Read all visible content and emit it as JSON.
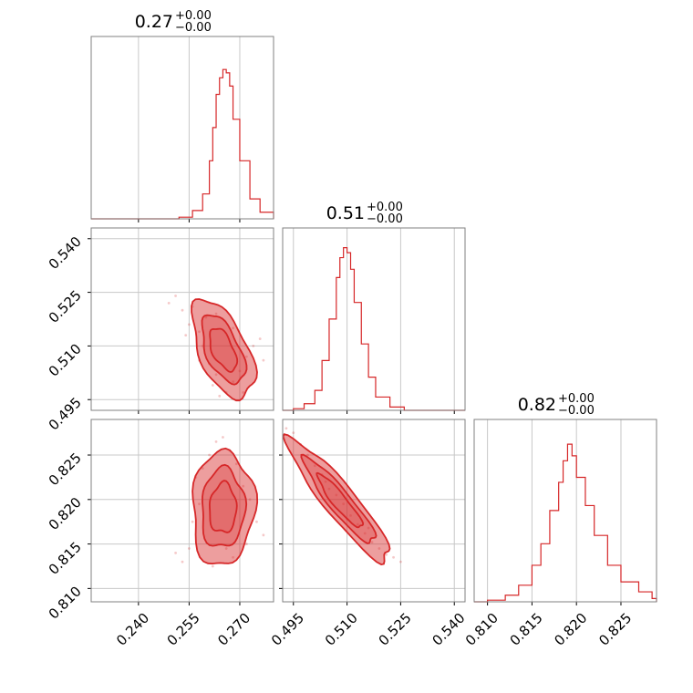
{
  "colors": {
    "main": "#d62728",
    "grid": "#c8c8c8",
    "frame": "#808080"
  },
  "chart_data": {
    "type": "corner",
    "parameters": [
      {
        "key": "p1",
        "title_value": "0.27",
        "title_upper": "+0.00",
        "title_lower": "−0.00",
        "range": [
          0.226,
          0.28
        ],
        "ticks": [
          "0.240",
          "0.255",
          "0.270"
        ],
        "hist_ymax": 1.0,
        "hist_x": [
          0.248,
          0.252,
          0.256,
          0.259,
          0.261,
          0.262,
          0.263,
          0.264,
          0.265,
          0.266,
          0.267,
          0.268,
          0.27,
          0.273,
          0.276,
          0.28
        ],
        "hist_y": [
          0.0,
          0.01,
          0.05,
          0.15,
          0.35,
          0.55,
          0.75,
          0.85,
          0.9,
          0.88,
          0.8,
          0.6,
          0.35,
          0.12,
          0.04,
          0.01
        ]
      },
      {
        "key": "p2",
        "title_value": "0.51",
        "title_upper": "+0.00",
        "title_lower": "−0.00",
        "range": [
          0.492,
          0.543
        ],
        "ticks": [
          "0.495",
          "0.510",
          "0.525",
          "0.540"
        ],
        "y_ticks": [
          "0.495",
          "0.510",
          "0.525",
          "0.540"
        ],
        "hist_ymax": 1.0,
        "hist_x": [
          0.495,
          0.498,
          0.501,
          0.503,
          0.505,
          0.507,
          0.508,
          0.509,
          0.51,
          0.511,
          0.512,
          0.514,
          0.516,
          0.518,
          0.522,
          0.526
        ],
        "hist_y": [
          0.01,
          0.04,
          0.12,
          0.3,
          0.55,
          0.8,
          0.92,
          0.98,
          0.95,
          0.85,
          0.65,
          0.4,
          0.2,
          0.08,
          0.02,
          0.0
        ]
      },
      {
        "key": "p3",
        "title_value": "0.82",
        "title_upper": "+0.00",
        "title_lower": "−0.00",
        "range": [
          0.8085,
          0.829
        ],
        "ticks": [
          "0.810",
          "0.815",
          "0.820",
          "0.825"
        ],
        "y_ticks": [
          "0.810",
          "0.815",
          "0.820",
          "0.825"
        ],
        "hist_ymax": 1.0,
        "hist_x": [
          0.81,
          0.812,
          0.8135,
          0.815,
          0.816,
          0.817,
          0.818,
          0.8185,
          0.819,
          0.8195,
          0.82,
          0.821,
          0.822,
          0.8235,
          0.825,
          0.827,
          0.8285
        ],
        "hist_y": [
          0.01,
          0.04,
          0.1,
          0.22,
          0.35,
          0.55,
          0.72,
          0.85,
          0.95,
          0.88,
          0.75,
          0.58,
          0.4,
          0.22,
          0.12,
          0.06,
          0.02
        ]
      }
    ],
    "pairs": [
      {
        "x": "p1",
        "y": "p2",
        "center": [
          0.265,
          0.509
        ],
        "sigma": [
          0.004,
          0.006
        ],
        "rho": -0.55,
        "contour_levels": [
          1.0,
          1.6,
          2.3
        ],
        "scatter_points": [
          [
            0.249,
            0.522
          ],
          [
            0.251,
            0.524
          ],
          [
            0.253,
            0.52
          ],
          [
            0.255,
            0.516
          ],
          [
            0.256,
            0.521
          ],
          [
            0.258,
            0.514
          ],
          [
            0.259,
            0.51
          ],
          [
            0.26,
            0.518
          ],
          [
            0.261,
            0.505
          ],
          [
            0.262,
            0.499
          ],
          [
            0.263,
            0.502
          ],
          [
            0.264,
            0.496
          ],
          [
            0.266,
            0.497
          ],
          [
            0.268,
            0.5
          ],
          [
            0.27,
            0.503
          ],
          [
            0.272,
            0.507
          ],
          [
            0.274,
            0.51
          ],
          [
            0.276,
            0.512
          ],
          [
            0.277,
            0.506
          ],
          [
            0.268,
            0.515
          ],
          [
            0.263,
            0.519
          ],
          [
            0.258,
            0.506
          ],
          [
            0.271,
            0.497
          ],
          [
            0.254,
            0.513
          ]
        ]
      },
      {
        "x": "p1",
        "y": "p3",
        "center": [
          0.265,
          0.819
        ],
        "sigma": [
          0.004,
          0.0028
        ],
        "rho": 0.05,
        "contour_levels": [
          1.0,
          1.6,
          2.3
        ],
        "scatter_points": [
          [
            0.251,
            0.814
          ],
          [
            0.253,
            0.813
          ],
          [
            0.255,
            0.8145
          ],
          [
            0.257,
            0.8225
          ],
          [
            0.259,
            0.8235
          ],
          [
            0.261,
            0.825
          ],
          [
            0.263,
            0.8265
          ],
          [
            0.265,
            0.827
          ],
          [
            0.267,
            0.8255
          ],
          [
            0.269,
            0.824
          ],
          [
            0.271,
            0.8215
          ],
          [
            0.273,
            0.82
          ],
          [
            0.275,
            0.8175
          ],
          [
            0.277,
            0.816
          ],
          [
            0.272,
            0.815
          ],
          [
            0.268,
            0.8135
          ],
          [
            0.262,
            0.8125
          ],
          [
            0.258,
            0.8195
          ],
          [
            0.256,
            0.8175
          ],
          [
            0.266,
            0.8145
          ]
        ]
      },
      {
        "x": "p2",
        "y": "p3",
        "center": [
          0.508,
          0.8198
        ],
        "sigma": [
          0.0062,
          0.003
        ],
        "rho": -0.92,
        "contour_levels": [
          1.0,
          1.6,
          2.3
        ],
        "scatter_points": [
          [
            0.493,
            0.828
          ],
          [
            0.495,
            0.8275
          ],
          [
            0.497,
            0.8262
          ],
          [
            0.499,
            0.825
          ],
          [
            0.501,
            0.8238
          ],
          [
            0.503,
            0.8228
          ],
          [
            0.505,
            0.8212
          ],
          [
            0.507,
            0.8205
          ],
          [
            0.509,
            0.8195
          ],
          [
            0.511,
            0.8182
          ],
          [
            0.513,
            0.8172
          ],
          [
            0.515,
            0.8162
          ],
          [
            0.517,
            0.8152
          ],
          [
            0.519,
            0.8145
          ],
          [
            0.521,
            0.8138
          ],
          [
            0.523,
            0.8135
          ],
          [
            0.525,
            0.813
          ],
          [
            0.51,
            0.8178
          ],
          [
            0.504,
            0.822
          ],
          [
            0.516,
            0.8168
          ]
        ]
      }
    ]
  }
}
